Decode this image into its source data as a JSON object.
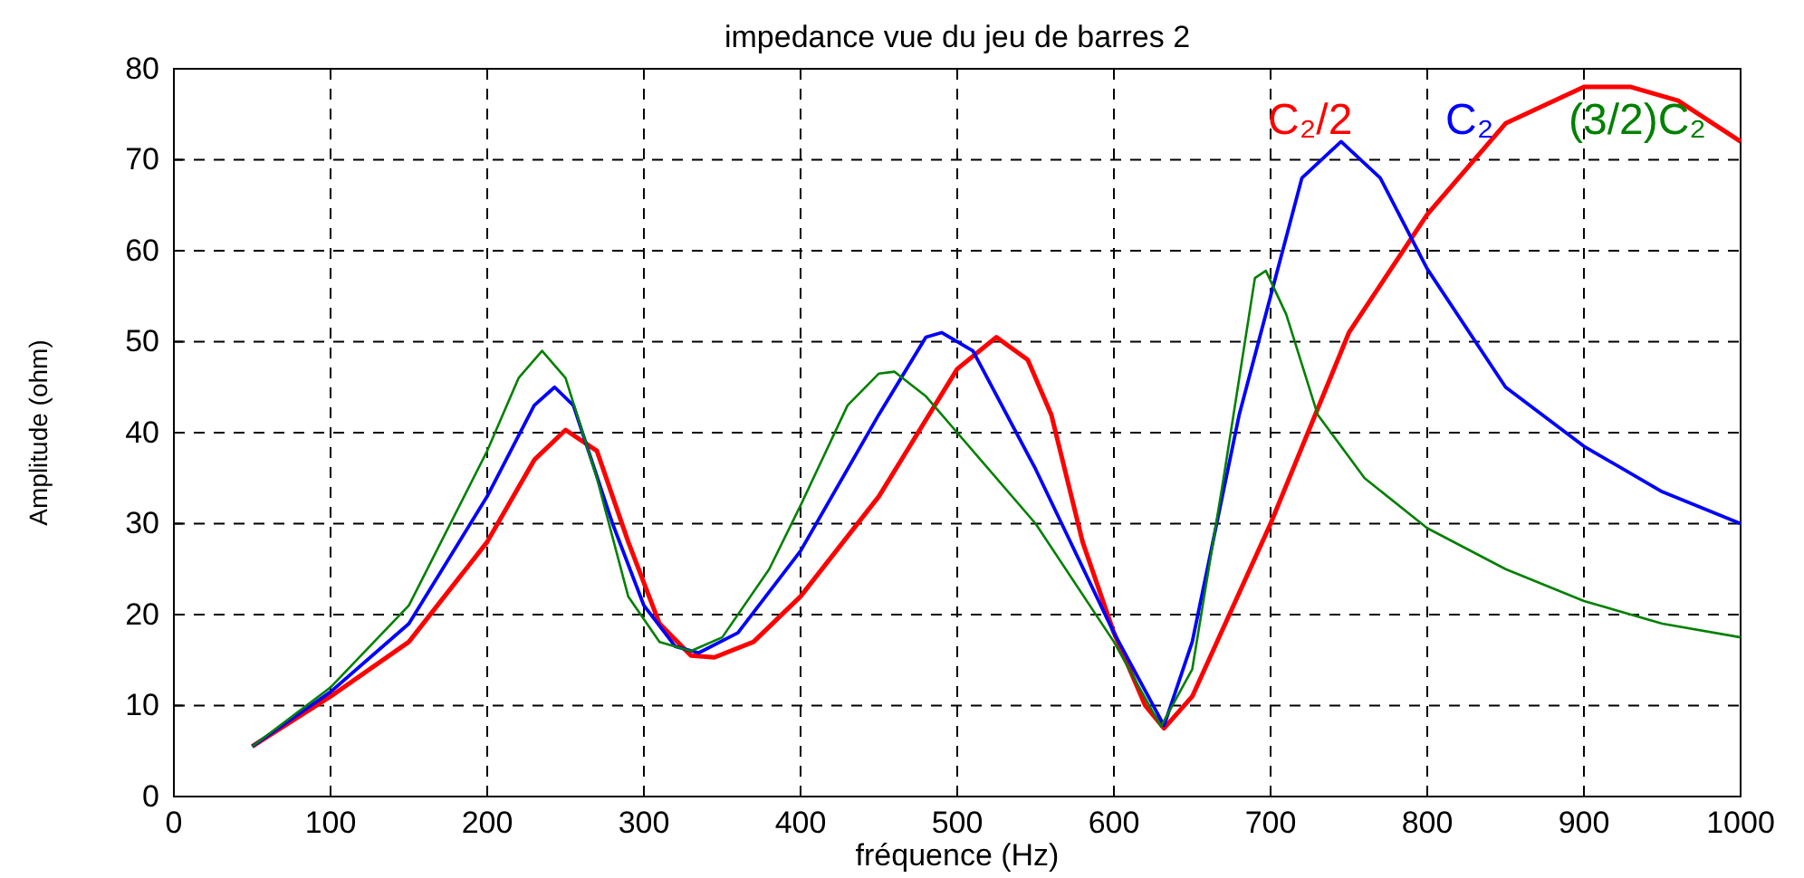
{
  "chart_data": {
    "type": "line",
    "title": "impedance vue du jeu de barres 2",
    "xlabel": "fréquence (Hz)",
    "ylabel": "Amplitude (ohm)",
    "xlim": [
      0,
      1000
    ],
    "xticks": [
      0,
      100,
      200,
      300,
      400,
      500,
      600,
      700,
      800,
      900,
      1000
    ],
    "ylim": [
      0,
      80
    ],
    "yticks": [
      0,
      10,
      20,
      30,
      40,
      50,
      60,
      70,
      80
    ],
    "grid": true,
    "line_style": "solid",
    "series": [
      {
        "name": "C₂/2",
        "color": "#ff0000",
        "x": [
          50,
          100,
          150,
          200,
          230,
          250,
          270,
          290,
          310,
          330,
          345,
          370,
          400,
          450,
          500,
          525,
          545,
          560,
          580,
          600,
          620,
          632,
          650,
          700,
          750,
          800,
          850,
          900,
          930,
          960,
          1000
        ],
        "values": [
          5.5,
          11,
          17,
          28,
          37,
          40.3,
          38,
          28,
          19,
          15.5,
          15.3,
          17,
          22,
          33,
          47,
          50.5,
          48,
          42,
          28,
          18,
          10,
          7.5,
          11,
          30,
          51,
          64,
          74,
          78,
          78,
          76.5,
          72
        ]
      },
      {
        "name": "C₂",
        "color": "#0000ff",
        "x": [
          50,
          100,
          150,
          200,
          230,
          243,
          255,
          280,
          300,
          320,
          335,
          360,
          400,
          450,
          480,
          490,
          510,
          550,
          600,
          632,
          650,
          680,
          700,
          720,
          745,
          770,
          800,
          850,
          900,
          950,
          1000
        ],
        "values": [
          5.5,
          11.5,
          19,
          33,
          43,
          45,
          43,
          30,
          21,
          16.5,
          15.8,
          18,
          27,
          42,
          50.5,
          51,
          49,
          36,
          18,
          7.8,
          17,
          42,
          55,
          68,
          72,
          68,
          58,
          45,
          38.5,
          33.5,
          30
        ]
      },
      {
        "name": "(3/2)C₂",
        "color": "#008000",
        "x": [
          50,
          100,
          150,
          200,
          220,
          235,
          250,
          270,
          290,
          310,
          330,
          350,
          380,
          400,
          430,
          450,
          460,
          480,
          500,
          550,
          600,
          630,
          650,
          670,
          690,
          697,
          710,
          730,
          760,
          800,
          850,
          900,
          950,
          1000
        ],
        "values": [
          5.5,
          12,
          21,
          38,
          46,
          49,
          46,
          35,
          22,
          17,
          16,
          17.5,
          25,
          32,
          43,
          46.5,
          46.7,
          44,
          40,
          30,
          17,
          7.7,
          14,
          35,
          57,
          57.8,
          53,
          42,
          35,
          29.5,
          25,
          21.5,
          19,
          17.5
        ]
      }
    ]
  }
}
